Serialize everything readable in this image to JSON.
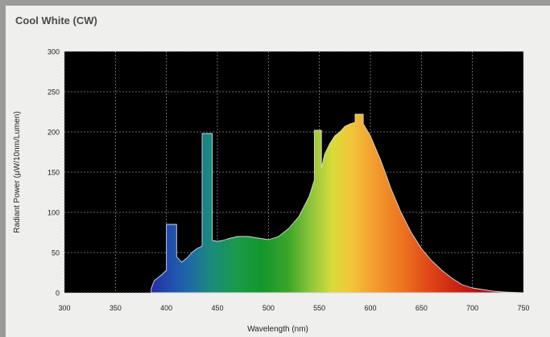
{
  "chart_data": {
    "type": "area",
    "title": "Cool White (CW)",
    "xlabel": "Wavelength (nm)",
    "ylabel": "Radiant Power (µW/10nm/Lumen)",
    "xlim": [
      300,
      750
    ],
    "ylim": [
      0,
      300
    ],
    "xticks": [
      300,
      350,
      400,
      450,
      500,
      550,
      600,
      650,
      700,
      750
    ],
    "yticks": [
      0,
      50,
      100,
      150,
      200,
      250,
      300
    ],
    "grid": true,
    "plot_background": "#000000",
    "fill": "visible-spectrum gradient (violet to red)",
    "series": [
      {
        "x": [
          385,
          388,
          395,
          400,
          400,
          410,
          410,
          415,
          420,
          425,
          430,
          435,
          435,
          445,
          445,
          450,
          455,
          460,
          470,
          480,
          490,
          500,
          510,
          520,
          530,
          540,
          545,
          545,
          552,
          552,
          555,
          560,
          565,
          570,
          575,
          580,
          585,
          585,
          593,
          593,
          600,
          605,
          610,
          615,
          620,
          625,
          630,
          640,
          650,
          660,
          670,
          680,
          690,
          700,
          710,
          720,
          730,
          740,
          750
        ],
        "y": [
          5,
          15,
          22,
          28,
          85,
          85,
          45,
          38,
          43,
          50,
          55,
          58,
          198,
          198,
          65,
          64,
          65,
          67,
          70,
          70,
          68,
          66,
          70,
          80,
          95,
          120,
          140,
          202,
          202,
          155,
          172,
          185,
          195,
          200,
          207,
          210,
          212,
          222,
          222,
          210,
          195,
          180,
          165,
          148,
          130,
          115,
          100,
          75,
          55,
          40,
          28,
          18,
          10,
          6,
          4,
          2,
          1,
          0.5,
          0
        ]
      }
    ]
  },
  "colors": {
    "background": "#9a9a9a",
    "frame": "#efefed",
    "title": "#4a4a4a",
    "plot": "#000000",
    "grid": "#8c8c8c"
  }
}
